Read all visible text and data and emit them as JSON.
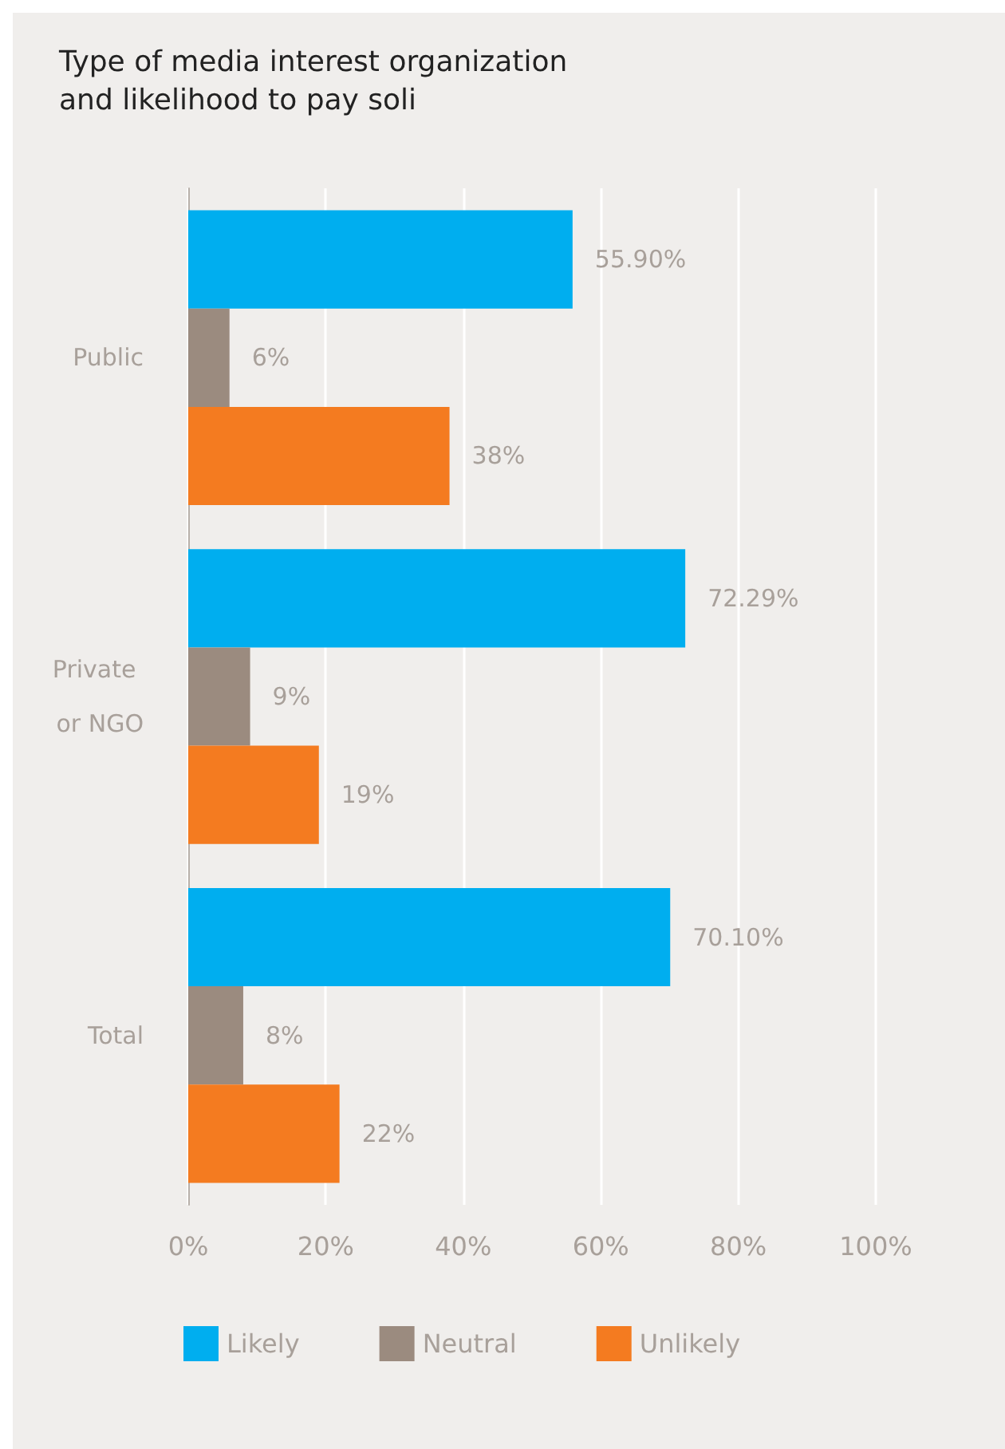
{
  "chart_data": {
    "type": "bar",
    "orientation": "horizontal",
    "title": "Type of media interest organization and likelihood to pay soli",
    "categories": [
      "Public",
      "Private or NGO",
      "Total"
    ],
    "series": [
      {
        "name": "Likely",
        "color": "#00aeef",
        "values": [
          55.9,
          72.29,
          70.1
        ],
        "value_labels": [
          "55.90%",
          "72.29%",
          "70.10%"
        ]
      },
      {
        "name": "Neutral",
        "color": "#9b8b7f",
        "values": [
          6,
          9,
          8
        ],
        "value_labels": [
          "6%",
          "9%",
          "8%"
        ]
      },
      {
        "name": "Unlikely",
        "color": "#f47b20",
        "values": [
          38,
          19,
          22
        ],
        "value_labels": [
          "38%",
          "19%",
          "22%"
        ]
      }
    ],
    "xlim": [
      0,
      100
    ],
    "xticks": [
      {
        "value": 0,
        "label": "0%"
      },
      {
        "value": 20,
        "label": "20%"
      },
      {
        "value": 40,
        "label": "40%"
      },
      {
        "value": 60,
        "label": "60%"
      },
      {
        "value": 80,
        "label": "80%"
      },
      {
        "value": 100,
        "label": "100%"
      }
    ],
    "grid": "x",
    "legend": "bottom"
  }
}
